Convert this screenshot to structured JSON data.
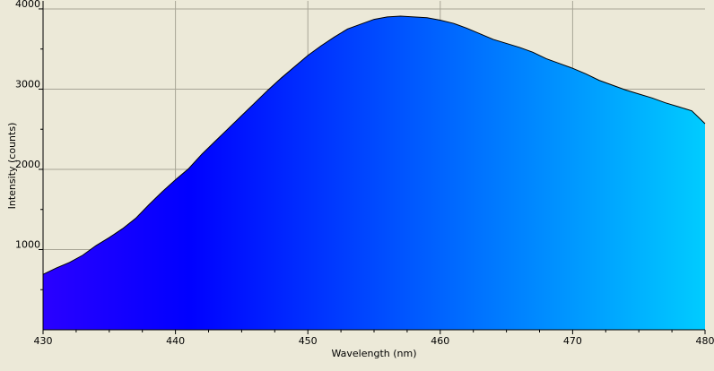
{
  "chart_data": {
    "type": "area",
    "title": "",
    "xlabel": "Wavelength (nm)",
    "ylabel": "Intensity (counts)",
    "xlim": [
      430,
      480
    ],
    "ylim": [
      0,
      4100
    ],
    "xticks": [
      430,
      440,
      450,
      460,
      470,
      480
    ],
    "yticks": [
      1000,
      2000,
      3000,
      4000
    ],
    "grid": true,
    "legend": "none",
    "fill_gradient": [
      "#2A00FF",
      "#0000FF",
      "#00CCFF"
    ],
    "line_color": "#000000",
    "series": [
      {
        "x": [
          430,
          431,
          432,
          433,
          434,
          435,
          436,
          437,
          438,
          439,
          440,
          441,
          442,
          443,
          444,
          445,
          446,
          447,
          448,
          449,
          450,
          451,
          452,
          453,
          454,
          455,
          456,
          457,
          458,
          459,
          460,
          461,
          462,
          463,
          464,
          465,
          466,
          467,
          468,
          469,
          470,
          471,
          472,
          473,
          474,
          475,
          476,
          477,
          478,
          479,
          480
        ],
        "y": [
          690,
          770,
          840,
          930,
          1050,
          1150,
          1260,
          1390,
          1560,
          1720,
          1870,
          2010,
          2190,
          2350,
          2510,
          2670,
          2830,
          2990,
          3140,
          3280,
          3420,
          3540,
          3650,
          3750,
          3810,
          3870,
          3900,
          3910,
          3900,
          3890,
          3860,
          3820,
          3760,
          3690,
          3620,
          3570,
          3520,
          3460,
          3380,
          3320,
          3260,
          3190,
          3110,
          3050,
          2990,
          2940,
          2890,
          2830,
          2780,
          2730,
          2570
        ]
      }
    ]
  }
}
